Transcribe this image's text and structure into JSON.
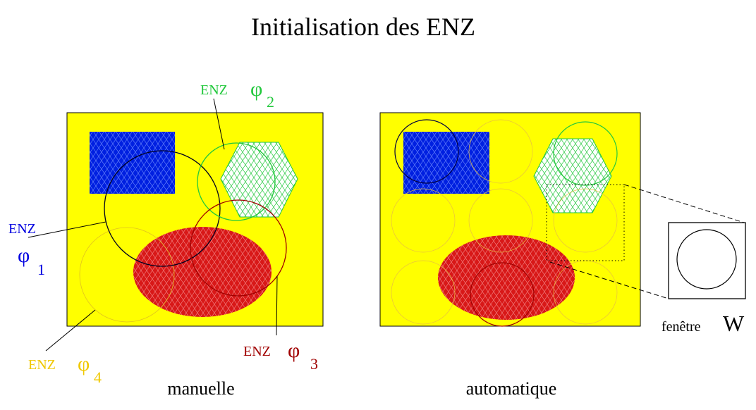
{
  "title": "Initialisation des ENZ",
  "panels": [
    {
      "caption": "manuelle"
    },
    {
      "caption": "automatique"
    }
  ],
  "labels": [
    {
      "text": "ENZ",
      "symbol": "φ",
      "index": "1"
    },
    {
      "text": "ENZ",
      "symbol": "φ",
      "index": "2"
    },
    {
      "text": "ENZ",
      "symbol": "φ",
      "index": "3"
    },
    {
      "text": "ENZ",
      "symbol": "φ",
      "index": "4"
    }
  ],
  "window": {
    "label": "fenêtre",
    "symbol": "W"
  }
}
